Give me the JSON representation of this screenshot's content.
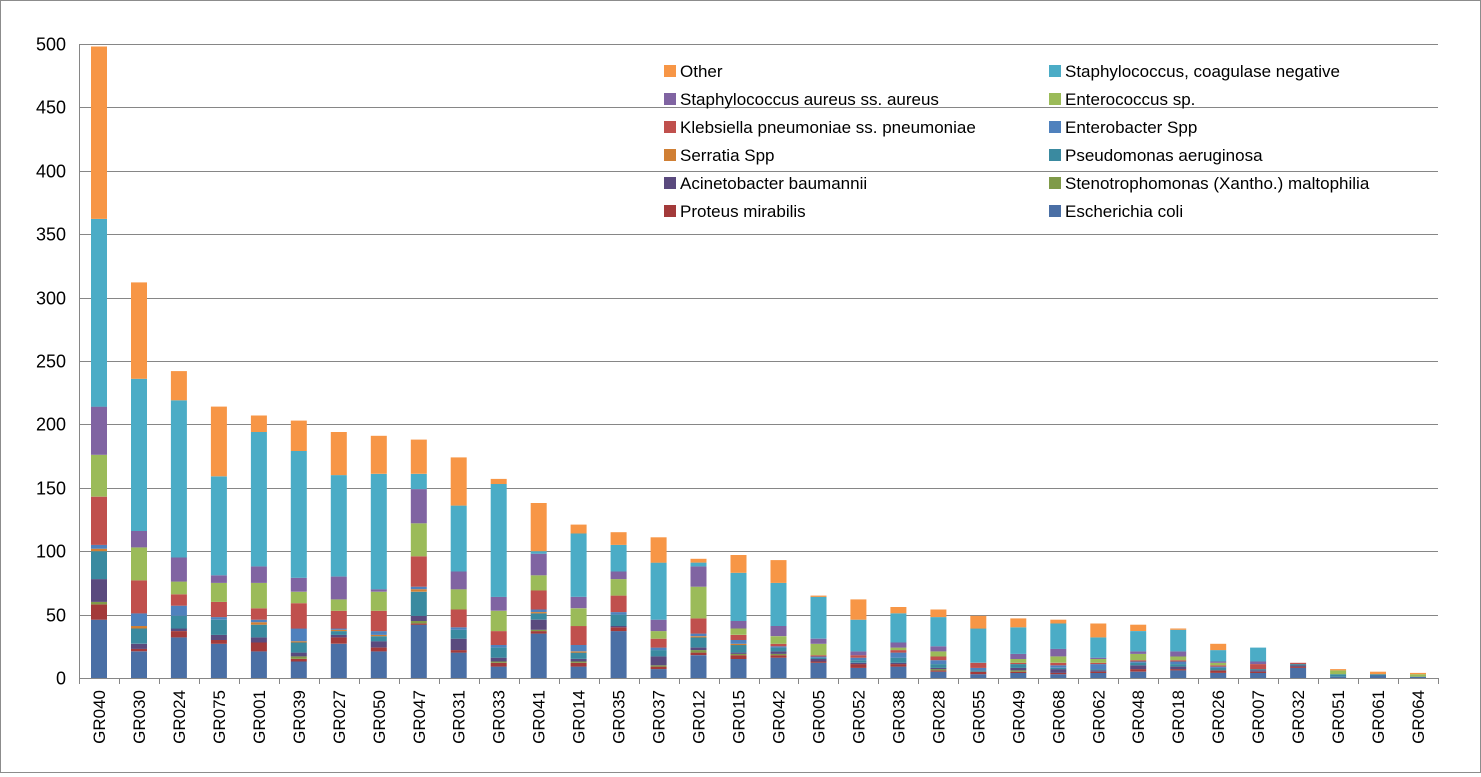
{
  "chart_data": {
    "type": "bar",
    "stacked": true,
    "title": "",
    "xlabel": "",
    "ylabel": "",
    "ylim": [
      0,
      500
    ],
    "yticks": [
      0,
      50,
      100,
      150,
      200,
      250,
      300,
      350,
      400,
      450,
      500
    ],
    "grid": true,
    "legend_position": "top-right",
    "categories": [
      "GR040",
      "GR030",
      "GR024",
      "GR075",
      "GR001",
      "GR039",
      "GR027",
      "GR050",
      "GR047",
      "GR031",
      "GR033",
      "GR041",
      "GR014",
      "GR035",
      "GR037",
      "GR012",
      "GR015",
      "GR042",
      "GR005",
      "GR052",
      "GR038",
      "GR028",
      "GR055",
      "GR049",
      "GR068",
      "GR062",
      "GR048",
      "GR018",
      "GR026",
      "GR007",
      "GR032",
      "GR051",
      "GR061",
      "GR064"
    ],
    "series": [
      {
        "name": "Escherichia coli",
        "color": "#4a6fa5",
        "values": [
          46,
          21,
          32,
          27,
          21,
          13,
          27,
          21,
          42,
          20,
          9,
          35,
          9,
          37,
          7,
          18,
          15,
          16,
          12,
          8,
          9,
          5,
          3,
          4,
          3,
          4,
          5,
          6,
          4,
          4,
          8,
          1,
          2,
          1
        ]
      },
      {
        "name": "Proteus mirabilis",
        "color": "#a33a3a",
        "values": [
          12,
          2,
          5,
          3,
          7,
          2,
          5,
          3,
          1,
          2,
          3,
          2,
          3,
          3,
          2,
          2,
          3,
          2,
          1,
          3,
          2,
          1,
          2,
          1,
          1,
          1,
          2,
          1,
          2,
          1,
          1,
          0,
          0,
          0
        ]
      },
      {
        "name": "Stenotrophomonas (Xantho.) maltophilia",
        "color": "#7f9a48",
        "values": [
          2,
          0,
          0,
          0,
          0,
          2,
          0,
          0,
          2,
          0,
          1,
          1,
          1,
          0,
          1,
          2,
          1,
          1,
          0,
          0,
          0,
          1,
          0,
          1,
          0,
          0,
          0,
          0,
          0,
          0,
          0,
          0,
          0,
          0
        ]
      },
      {
        "name": "Acinetobacter baumannii",
        "color": "#5a4a7e",
        "values": [
          18,
          4,
          2,
          4,
          4,
          3,
          2,
          5,
          4,
          9,
          3,
          8,
          2,
          1,
          7,
          2,
          1,
          2,
          2,
          1,
          1,
          1,
          0,
          2,
          3,
          1,
          3,
          2,
          0,
          1,
          1,
          0,
          0,
          0
        ]
      },
      {
        "name": "Pseudomonas aeruginosa",
        "color": "#3a8aa0",
        "values": [
          22,
          12,
          10,
          12,
          10,
          8,
          3,
          4,
          19,
          7,
          8,
          5,
          5,
          9,
          5,
          8,
          6,
          3,
          1,
          2,
          4,
          3,
          1,
          3,
          1,
          1,
          2,
          2,
          2,
          1,
          1,
          2,
          1,
          0
        ]
      },
      {
        "name": "Serratia Spp",
        "color": "#d07f34",
        "values": [
          2,
          2,
          0,
          0,
          2,
          1,
          1,
          1,
          2,
          0,
          0,
          1,
          1,
          0,
          0,
          1,
          1,
          0,
          0,
          0,
          0,
          0,
          0,
          0,
          0,
          0,
          0,
          0,
          0,
          0,
          0,
          0,
          0,
          0
        ]
      },
      {
        "name": "Enterobacter Spp",
        "color": "#4f81bd",
        "values": [
          3,
          10,
          8,
          2,
          2,
          10,
          1,
          3,
          2,
          2,
          2,
          2,
          5,
          2,
          2,
          2,
          3,
          1,
          1,
          2,
          4,
          3,
          2,
          0,
          2,
          4,
          1,
          2,
          1,
          0,
          0,
          0,
          0,
          0
        ]
      },
      {
        "name": "Klebsiella pneumoniae ss. pneumoniae",
        "color": "#c0504d",
        "values": [
          38,
          26,
          9,
          12,
          9,
          20,
          14,
          16,
          24,
          14,
          11,
          15,
          15,
          13,
          7,
          12,
          4,
          2,
          1,
          2,
          2,
          3,
          4,
          1,
          2,
          1,
          1,
          1,
          1,
          4,
          1,
          0,
          0,
          0
        ]
      },
      {
        "name": "Enterococcus sp.",
        "color": "#9bbb59",
        "values": [
          33,
          26,
          10,
          15,
          20,
          9,
          9,
          15,
          26,
          16,
          16,
          12,
          14,
          13,
          6,
          25,
          5,
          6,
          9,
          0,
          2,
          4,
          0,
          3,
          5,
          3,
          5,
          3,
          2,
          0,
          0,
          3,
          0,
          2
        ]
      },
      {
        "name": "Staphylococcus aureus ss. aureus",
        "color": "#8064a2",
        "values": [
          38,
          13,
          19,
          6,
          13,
          11,
          18,
          2,
          27,
          14,
          11,
          17,
          9,
          6,
          9,
          16,
          6,
          8,
          4,
          3,
          4,
          4,
          0,
          4,
          6,
          1,
          2,
          4,
          1,
          2,
          0,
          0,
          0,
          0
        ]
      },
      {
        "name": "Staphylococcus, coagulase negative",
        "color": "#4bacc6",
        "values": [
          148,
          120,
          124,
          78,
          106,
          100,
          80,
          91,
          12,
          52,
          89,
          2,
          50,
          21,
          45,
          3,
          38,
          34,
          33,
          25,
          23,
          23,
          27,
          21,
          20,
          16,
          16,
          17,
          9,
          11,
          0,
          0,
          0,
          0
        ]
      },
      {
        "name": "Other",
        "color": "#f79646",
        "values": [
          136,
          76,
          23,
          55,
          13,
          24,
          34,
          30,
          27,
          38,
          4,
          38,
          7,
          10,
          20,
          3,
          14,
          18,
          1,
          16,
          5,
          6,
          10,
          7,
          3,
          11,
          5,
          1,
          5,
          0,
          0,
          1,
          2,
          1
        ]
      }
    ],
    "legend_order": [
      "Other",
      "Staphylococcus, coagulase negative",
      "Staphylococcus aureus ss. aureus",
      "Enterococcus sp.",
      "Klebsiella pneumoniae ss. pneumoniae",
      "Enterobacter Spp",
      "Serratia Spp",
      "Pseudomonas aeruginosa",
      "Acinetobacter baumannii",
      "Stenotrophomonas (Xantho.) maltophilia",
      "Proteus mirabilis",
      "Escherichia coli"
    ]
  }
}
